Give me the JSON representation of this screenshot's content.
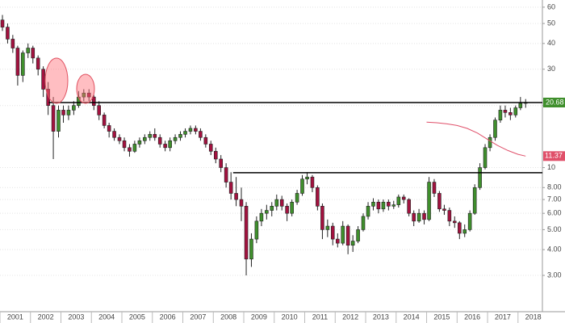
{
  "chart_data": {
    "type": "candlestick",
    "x": [
      2001.08,
      2001.25,
      2001.42,
      2001.58,
      2001.75,
      2001.92,
      2002.08,
      2002.25,
      2002.42,
      2002.58,
      2002.75,
      2002.92,
      2003.08,
      2003.25,
      2003.42,
      2003.58,
      2003.75,
      2003.92,
      2004.08,
      2004.25,
      2004.42,
      2004.58,
      2004.75,
      2004.92,
      2005.08,
      2005.25,
      2005.42,
      2005.58,
      2005.75,
      2005.92,
      2006.08,
      2006.25,
      2006.42,
      2006.58,
      2006.75,
      2006.92,
      2007.08,
      2007.25,
      2007.42,
      2007.58,
      2007.75,
      2007.92,
      2008.08,
      2008.25,
      2008.42,
      2008.58,
      2008.75,
      2008.92,
      2009.08,
      2009.25,
      2009.42,
      2009.58,
      2009.75,
      2009.92,
      2010.08,
      2010.25,
      2010.42,
      2010.58,
      2010.75,
      2010.92,
      2011.08,
      2011.25,
      2011.42,
      2011.58,
      2011.75,
      2011.92,
      2012.08,
      2012.25,
      2012.42,
      2012.58,
      2012.75,
      2012.92,
      2013.08,
      2013.25,
      2013.42,
      2013.58,
      2013.75,
      2013.92,
      2014.08,
      2014.25,
      2014.42,
      2014.58,
      2014.75,
      2014.92,
      2015.08,
      2015.25,
      2015.42,
      2015.58,
      2015.75,
      2015.92,
      2016.08,
      2016.25,
      2016.42,
      2016.58,
      2016.75,
      2016.92,
      2017.08,
      2017.25,
      2017.42,
      2017.58,
      2017.75,
      2017.92,
      2018.08,
      2018.25
    ],
    "open": [
      52,
      48,
      42,
      38,
      28,
      36,
      38,
      34,
      30,
      24,
      20,
      15,
      19,
      18,
      19,
      20,
      22,
      23,
      22,
      20,
      18,
      16,
      15,
      14,
      13.5,
      12.5,
      12,
      13,
      13.5,
      14,
      14.5,
      14,
      13,
      12.5,
      13.5,
      14,
      14.5,
      15,
      15.5,
      15,
      14,
      13,
      12,
      11,
      10,
      8.5,
      7.5,
      7,
      6.5,
      3.6,
      4.5,
      5.5,
      6,
      6.2,
      6.5,
      7,
      6.5,
      6,
      6.8,
      7.5,
      8.8,
      9,
      8,
      6.5,
      5,
      5.2,
      4.5,
      4.3,
      5.2,
      4.2,
      4.4,
      5,
      5.8,
      6.5,
      6.8,
      6.3,
      6.8,
      6.5,
      6.6,
      7.2,
      7,
      6,
      5.5,
      6,
      5.6,
      8.5,
      7.5,
      6.3,
      6.2,
      5.5,
      5.4,
      4.8,
      5,
      6,
      8,
      10,
      12.5,
      14,
      17,
      19,
      18.5,
      18,
      19.5,
      20.5
    ],
    "high": [
      55,
      50,
      44,
      39,
      37,
      40,
      39,
      35,
      31,
      26,
      22,
      20,
      20,
      20,
      21,
      23.5,
      24,
      24,
      22.5,
      21,
      18.5,
      16.5,
      15.5,
      14.5,
      14,
      13,
      13.5,
      14,
      14.5,
      15,
      15.5,
      14.5,
      13.5,
      14,
      14.5,
      15,
      15.5,
      16,
      16,
      15.5,
      14.5,
      13.5,
      12.5,
      11.5,
      10.5,
      9.5,
      9,
      8,
      6.8,
      4.8,
      5.8,
      6.3,
      6.6,
      6.8,
      7.4,
      7.3,
      6.7,
      7,
      7.8,
      9.2,
      9.5,
      9.2,
      8.2,
      6.7,
      5.6,
      5.4,
      4.8,
      5.5,
      5.3,
      4.7,
      5.2,
      6,
      6.8,
      7.1,
      7,
      7,
      7,
      6.9,
      7.4,
      7.4,
      7.1,
      6.2,
      6.3,
      6.2,
      9,
      8.8,
      7.7,
      6.6,
      6.4,
      5.8,
      5.5,
      5.3,
      6.2,
      8.3,
      10.5,
      13,
      14.5,
      17.5,
      20,
      20,
      19.5,
      20,
      22,
      21.5
    ],
    "low": [
      46,
      40,
      36,
      25,
      26,
      34,
      32,
      28,
      22,
      18,
      11,
      14,
      16.5,
      17,
      18,
      19.5,
      21,
      21,
      19,
      17,
      15.5,
      14,
      13.5,
      13,
      12,
      11.3,
      11.8,
      12.5,
      13,
      13.5,
      13.5,
      12.5,
      12,
      12,
      13,
      13.5,
      14,
      14.5,
      14.5,
      13.5,
      12.5,
      11.5,
      10.5,
      9.5,
      8,
      7,
      6.5,
      5.5,
      3,
      3.3,
      4.3,
      5.2,
      5.6,
      5.8,
      6.2,
      6.2,
      5.5,
      5.8,
      6.6,
      7.3,
      8.3,
      7.6,
      6.2,
      4.5,
      4.6,
      4.2,
      4.1,
      4.2,
      3.8,
      3.9,
      4.3,
      4.9,
      5.6,
      6.2,
      6,
      6.1,
      6.2,
      6.3,
      6.4,
      6.7,
      5.8,
      5.2,
      5.4,
      5.3,
      5.5,
      7.2,
      6.1,
      5.9,
      5.2,
      5.1,
      4.5,
      4.6,
      4.9,
      5.9,
      7.8,
      9.8,
      12,
      13.5,
      16.5,
      17.5,
      17,
      17.5,
      19,
      19.5
    ],
    "close": [
      48,
      42,
      38,
      28,
      36,
      38,
      34,
      30,
      24,
      20,
      15,
      19,
      18,
      19,
      20,
      22,
      23,
      22,
      20,
      18,
      16,
      15,
      14,
      13.5,
      12.5,
      12,
      13,
      13.5,
      14,
      14.5,
      14,
      13,
      12.5,
      13.5,
      14,
      14.5,
      15,
      15.5,
      15,
      14,
      13,
      12,
      11,
      10,
      8.5,
      7.5,
      7,
      6.5,
      3.6,
      4.5,
      5.5,
      6,
      6.2,
      6.5,
      7,
      6.5,
      6,
      6.8,
      7.5,
      8.8,
      9,
      8,
      6.5,
      5,
      5.2,
      4.5,
      4.3,
      5.2,
      4.2,
      4.4,
      5,
      5.8,
      6.5,
      6.8,
      6.3,
      6.8,
      6.5,
      6.6,
      7.2,
      7,
      6,
      5.5,
      6,
      5.6,
      8.5,
      7.5,
      6.3,
      6.2,
      5.5,
      5.4,
      4.8,
      5,
      6,
      8,
      10,
      12.5,
      14,
      17,
      19,
      18.5,
      18,
      19.5,
      20.5,
      20.68
    ],
    "up_color": "#3f8f2c",
    "down_color": "#a3123f",
    "log_y": true,
    "grid": true,
    "xlim": [
      2001,
      2018.8
    ],
    "ylim": [
      2,
      65
    ],
    "yticks": [
      60,
      50,
      40,
      30,
      20,
      10,
      {
        "value": 8,
        "label": "8.00"
      },
      {
        "value": 7,
        "label": "7.00"
      },
      {
        "value": 6,
        "label": "6.00"
      },
      {
        "value": 5,
        "label": "5.00"
      },
      {
        "value": 4,
        "label": "4.00"
      },
      {
        "value": 3,
        "label": "3.00"
      }
    ],
    "xticks": [
      {
        "value": 2001.5,
        "label": "2001"
      },
      {
        "value": 2002.5,
        "label": "2002"
      },
      {
        "value": 2003.5,
        "label": "2003"
      },
      {
        "value": 2004.5,
        "label": "2004"
      },
      {
        "value": 2005.5,
        "label": "2005"
      },
      {
        "value": 2006.5,
        "label": "2006"
      },
      {
        "value": 2007.5,
        "label": "2007"
      },
      {
        "value": 2008.5,
        "label": "2008"
      },
      {
        "value": 2009.5,
        "label": "2009"
      },
      {
        "value": 2010.5,
        "label": "2010"
      },
      {
        "value": 2011.5,
        "label": "2011"
      },
      {
        "value": 2012.5,
        "label": "2012"
      },
      {
        "value": 2013.5,
        "label": "2013"
      },
      {
        "value": 2014.5,
        "label": "2014"
      },
      {
        "value": 2015.5,
        "label": "2015"
      },
      {
        "value": 2016.5,
        "label": "2016"
      },
      {
        "value": 2017.5,
        "label": "2017"
      },
      {
        "value": 2018.5,
        "label": "2018"
      }
    ],
    "level_lines": [
      {
        "value": 20.68,
        "start": 2002.6,
        "color": "#000000",
        "badge_color": "#3f8f2c"
      },
      {
        "value": 9.44,
        "start": 2008.65,
        "color": "#000000"
      }
    ],
    "moving_average": {
      "color": "#e0506a",
      "x": [
        2015.0,
        2015.33,
        2015.67,
        2016.0,
        2016.33,
        2016.67,
        2017.0,
        2017.33,
        2017.67,
        2018.0,
        2018.25
      ],
      "values": [
        16.6,
        16.5,
        16.3,
        16.0,
        15.5,
        14.7,
        13.7,
        12.8,
        12.1,
        11.6,
        11.37
      ]
    }
  }
}
